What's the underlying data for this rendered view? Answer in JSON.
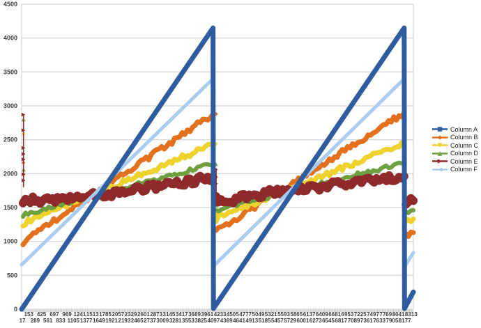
{
  "chart_data": {
    "type": "line",
    "title": "",
    "y_min": 0,
    "y_max": 4500,
    "y_step": 500,
    "x_min": 0,
    "x_max": 8360,
    "grid_on": true,
    "legend_position": "right",
    "colors": {
      "grid": "#cbcbcb",
      "axis_strip": "#e6e6e6",
      "axis_tick": "#c2c2c2",
      "label": "#3c3c3c"
    },
    "x_axis": {
      "row1": [
        153,
        425,
        697,
        969,
        1241,
        1513,
        1785,
        2057,
        2329,
        2601,
        2873,
        3145,
        3417,
        3689,
        3961,
        4233,
        4505,
        4777,
        5049,
        5321,
        5593,
        5865,
        6137,
        6409,
        6681,
        6953,
        7225,
        7497,
        7769,
        8041,
        8313
      ],
      "row2": [
        17,
        289,
        561,
        833,
        1105,
        1377,
        1649,
        1921,
        2193,
        2465,
        2737,
        3009,
        3281,
        3553,
        3825,
        4097,
        4369,
        4641,
        4913,
        5185,
        5457,
        5729,
        6001,
        6273,
        6545,
        6817,
        7089,
        7361,
        7633,
        7905,
        8177
      ]
    },
    "y_ticks": [
      0,
      500,
      1000,
      1500,
      2000,
      2500,
      3000,
      3500,
      4000,
      4500
    ],
    "series": [
      {
        "name": "Column A",
        "color": "#2f5c9f",
        "marker": "square",
        "width": 7,
        "jitter": 0,
        "segments": [
          [
            [
              0,
              0
            ],
            [
              4085,
              4150
            ],
            [
              4093,
              10
            ],
            [
              8163,
              4150
            ],
            [
              8171,
              10
            ],
            [
              8360,
              255
            ]
          ]
        ],
        "scatter": [],
        "spikes": []
      },
      {
        "name": "Column B",
        "color": "#e2701d",
        "marker": "diamond",
        "width": 7,
        "jitter": 40,
        "segments": [
          [
            [
              30,
              990
            ],
            [
              4085,
              2880
            ]
          ],
          [
            [
              4150,
              1150
            ],
            [
              8163,
              2900
            ]
          ],
          [
            [
              8200,
              1080
            ],
            [
              8360,
              1130
            ]
          ]
        ],
        "scatter": [
          [
            40,
            2160
          ],
          [
            4150,
            2880
          ],
          [
            4153,
            1450
          ],
          [
            4156,
            1300
          ],
          [
            4159,
            1160
          ],
          [
            8205,
            1120
          ],
          [
            8208,
            1060
          ]
        ],
        "spikes": []
      },
      {
        "name": "Column C",
        "color": "#eed22e",
        "marker": "tri-down",
        "width": 7,
        "jitter": 40,
        "segments": [
          [
            [
              30,
              1265
            ],
            [
              4085,
              2430
            ]
          ],
          [
            [
              4150,
              1330
            ],
            [
              8163,
              2450
            ]
          ],
          [
            [
              8200,
              1295
            ],
            [
              8360,
              1330
            ]
          ]
        ],
        "scatter": [
          [
            40,
            2570
          ],
          [
            42,
            1970
          ],
          [
            4150,
            2430
          ],
          [
            4153,
            1620
          ],
          [
            4156,
            1400
          ],
          [
            8205,
            1340
          ],
          [
            8208,
            1260
          ]
        ],
        "spikes": []
      },
      {
        "name": "Column D",
        "color": "#6fa03f",
        "marker": "tri-up",
        "width": 6,
        "jitter": 30,
        "segments": [
          [
            [
              30,
              1395
            ],
            [
              4085,
              2140
            ]
          ],
          [
            [
              4150,
              1465
            ],
            [
              8163,
              2160
            ]
          ],
          [
            [
              8200,
              1435
            ],
            [
              8360,
              1460
            ]
          ]
        ],
        "scatter": [
          [
            40,
            2800
          ],
          [
            42,
            2060
          ],
          [
            4150,
            2140
          ],
          [
            4153,
            1530
          ],
          [
            8205,
            1470
          ]
        ],
        "spikes": []
      },
      {
        "name": "Column E",
        "color": "#8e2a2b",
        "marker": "arrow-right",
        "width": 12,
        "jitter": 55,
        "segments": [
          [
            [
              30,
              1620
            ],
            [
              500,
              1590
            ],
            [
              1300,
              1650
            ],
            [
              2200,
              1730
            ],
            [
              3200,
              1840
            ],
            [
              4085,
              1950
            ]
          ],
          [
            [
              4150,
              1630
            ],
            [
              4400,
              1600
            ],
            [
              4800,
              1660
            ],
            [
              5400,
              1730
            ],
            [
              6300,
              1800
            ],
            [
              7200,
              1880
            ],
            [
              8163,
              1960
            ]
          ],
          [
            [
              8200,
              1560
            ],
            [
              8360,
              1600
            ]
          ]
        ],
        "scatter": [
          [
            40,
            2870
          ],
          [
            41,
            2640
          ],
          [
            42,
            2380
          ],
          [
            43,
            2290
          ],
          [
            44,
            2210
          ],
          [
            45,
            1990
          ],
          [
            46,
            1900
          ],
          [
            4151,
            2060
          ],
          [
            4153,
            1950
          ],
          [
            4155,
            1850
          ],
          [
            4157,
            1700
          ],
          [
            8205,
            1640
          ],
          [
            8208,
            1560
          ]
        ],
        "spikes": [
          [
            40,
            1800,
            2870
          ],
          [
            4152,
            1700,
            2080
          ],
          [
            8205,
            1450,
            1650
          ]
        ]
      },
      {
        "name": "Column F",
        "color": "#a9ccef",
        "marker": "tri-left",
        "width": 5,
        "jitter": 0,
        "segments": [
          [
            [
              0,
              655
            ],
            [
              4085,
              3400
            ],
            [
              4093,
              635
            ],
            [
              8163,
              3400
            ],
            [
              8171,
              625
            ],
            [
              8360,
              835
            ]
          ]
        ],
        "scatter": [],
        "spikes": []
      }
    ]
  }
}
